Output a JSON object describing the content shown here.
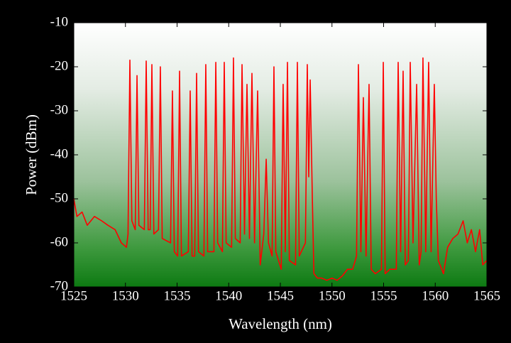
{
  "chart_data": {
    "type": "line",
    "xlabel": "Wavelength (nm)",
    "ylabel": "Power (dBm)",
    "color": "#ff0000",
    "xlim": [
      1525,
      1565
    ],
    "ylim": [
      -70,
      -10
    ],
    "xticks": [
      1525,
      1530,
      1535,
      1540,
      1545,
      1550,
      1555,
      1560,
      1565
    ],
    "yticks": [
      -70,
      -60,
      -50,
      -40,
      -30,
      -20,
      -10
    ],
    "x": [
      1525,
      1525.3,
      1525.8,
      1526.3,
      1527,
      1527.7,
      1528.3,
      1529,
      1529.6,
      1530.1,
      1530.25,
      1530.43,
      1530.62,
      1530.95,
      1531.12,
      1531.3,
      1531.83,
      1532.01,
      1532.2,
      1532.4,
      1532.56,
      1532.75,
      1533.2,
      1533.38,
      1533.56,
      1534.37,
      1534.55,
      1534.73,
      1535.06,
      1535.24,
      1535.42,
      1536.09,
      1536.27,
      1536.45,
      1536.71,
      1536.89,
      1537.07,
      1537.6,
      1537.78,
      1537.96,
      1538.57,
      1538.75,
      1538.93,
      1539.39,
      1539.57,
      1539.75,
      1540.28,
      1540.46,
      1540.64,
      1541.11,
      1541.29,
      1541.53,
      1541.77,
      1542.01,
      1542.25,
      1542.5,
      1542.8,
      1543.05,
      1543.4,
      1543.63,
      1543.85,
      1544.2,
      1544.38,
      1544.56,
      1545.09,
      1545.27,
      1545.48,
      1545.69,
      1545.87,
      1546.47,
      1546.65,
      1546.83,
      1547.43,
      1547.61,
      1547.75,
      1547.89,
      1548.1,
      1548.25,
      1548.6,
      1549,
      1549.5,
      1550,
      1550.5,
      1551,
      1551.5,
      1552,
      1552.38,
      1552.56,
      1552.8,
      1553.04,
      1553.3,
      1553.59,
      1553.8,
      1554.2,
      1554.79,
      1554.97,
      1555.15,
      1555.6,
      1556.23,
      1556.41,
      1556.65,
      1556.89,
      1557.1,
      1557.4,
      1557.58,
      1557.85,
      1558.2,
      1558.45,
      1558.63,
      1558.81,
      1559.08,
      1559.36,
      1559.6,
      1559.91,
      1560.1,
      1560.3,
      1560.8,
      1561.2,
      1561.7,
      1562.2,
      1562.7,
      1563.1,
      1563.5,
      1563.9,
      1564.3,
      1564.6,
      1565
    ],
    "values": [
      -50,
      -54,
      -53,
      -56,
      -54,
      -55,
      -56,
      -57,
      -60,
      -61,
      -58,
      -18.5,
      -55,
      -57,
      -22,
      -56,
      -57,
      -18.7,
      -57,
      -57,
      -19.5,
      -58,
      -57,
      -20,
      -59,
      -60,
      -25.5,
      -62,
      -63,
      -21,
      -63,
      -62,
      -25.5,
      -63,
      -63,
      -21.5,
      -62,
      -63,
      -19.5,
      -62,
      -62,
      -19,
      -60,
      -62,
      -19,
      -60,
      -61,
      -18,
      -59,
      -60,
      -19.5,
      -58,
      -24,
      -59,
      -21.5,
      -60,
      -25.5,
      -65,
      -58,
      -41,
      -60,
      -63,
      -20,
      -62,
      -66,
      -24,
      -62,
      -19,
      -64,
      -65,
      -19,
      -63,
      -60,
      -19.5,
      -45,
      -23,
      -50,
      -67,
      -68,
      -68,
      -68.5,
      -68,
      -68.5,
      -67.5,
      -66,
      -66,
      -63,
      -19.5,
      -62,
      -27,
      -63,
      -24,
      -66,
      -67,
      -66,
      -19,
      -67,
      -66,
      -66,
      -19,
      -62,
      -21,
      -65,
      -64,
      -19,
      -60,
      -24,
      -65,
      -62,
      -18,
      -62,
      -19,
      -62,
      -24,
      -50,
      -64,
      -67,
      -61,
      -59,
      -58,
      -55,
      -60,
      -57,
      -62,
      -57,
      -65,
      -64
    ]
  }
}
